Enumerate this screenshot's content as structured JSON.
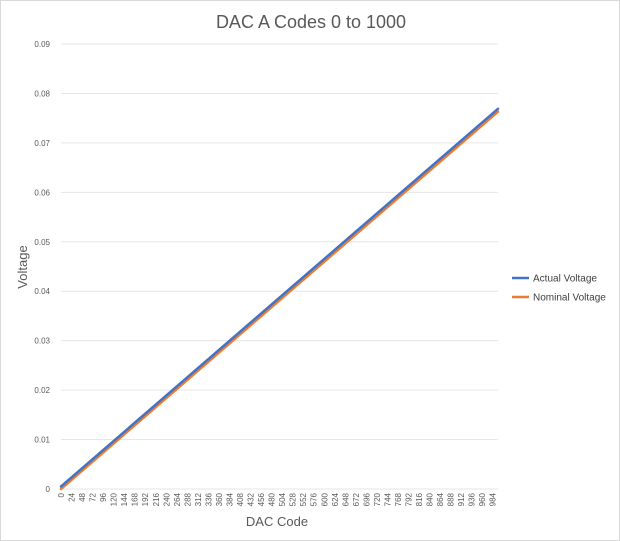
{
  "chart_data": {
    "type": "line",
    "title": "DAC A Codes 0 to 1000",
    "xlabel": "DAC Code",
    "ylabel": "Voltage",
    "xlim": [
      0,
      996
    ],
    "ylim": [
      0,
      0.09
    ],
    "yticks": [
      "0",
      "0.01",
      "0.02",
      "0.03",
      "0.04",
      "0.05",
      "0.06",
      "0.07",
      "0.08",
      "0.09"
    ],
    "xticks": [
      "0",
      "24",
      "48",
      "72",
      "96",
      "120",
      "144",
      "168",
      "192",
      "216",
      "240",
      "264",
      "288",
      "312",
      "336",
      "360",
      "384",
      "408",
      "432",
      "456",
      "480",
      "504",
      "528",
      "552",
      "576",
      "600",
      "624",
      "648",
      "672",
      "696",
      "720",
      "744",
      "768",
      "792",
      "816",
      "840",
      "864",
      "888",
      "912",
      "936",
      "960",
      "984"
    ],
    "grid": "horizontal",
    "legend_position": "right",
    "series": [
      {
        "name": "Actual Voltage",
        "color": "#4472C4",
        "x": [
          0,
          996
        ],
        "y": [
          0.0005,
          0.0769
        ]
      },
      {
        "name": "Nominal Voltage",
        "color": "#ED7D31",
        "x": [
          0,
          996
        ],
        "y": [
          0.0,
          0.0763
        ]
      }
    ]
  }
}
